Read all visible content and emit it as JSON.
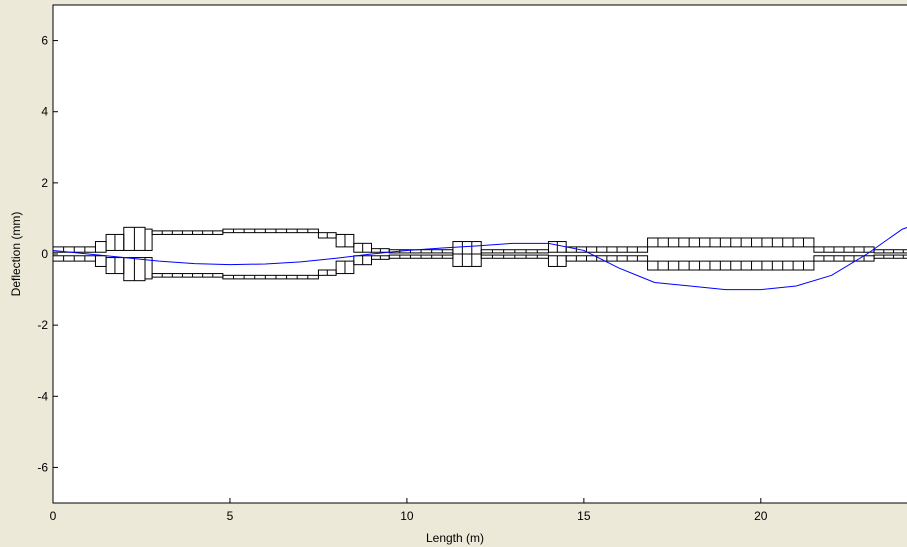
{
  "chart_data": {
    "type": "line",
    "x_label": "Length (m)",
    "y_label": "Deflection (mm)",
    "xlim": [
      0,
      24.3
    ],
    "ylim": [
      -7,
      7
    ],
    "xticks": [
      0,
      5,
      10,
      15,
      20
    ],
    "yticks": [
      -6,
      -4,
      -2,
      0,
      2,
      4,
      6
    ],
    "grid": false,
    "series": [
      {
        "color": "#0000ff",
        "x": [
          0,
          1,
          2,
          3,
          4,
          5,
          6,
          7,
          8,
          9,
          10,
          11,
          12,
          13,
          14,
          15,
          16,
          17,
          18,
          19,
          20,
          21,
          22,
          23,
          24,
          24.3
        ],
        "values": [
          0.1,
          0.0,
          -0.1,
          -0.2,
          -0.27,
          -0.3,
          -0.28,
          -0.22,
          -0.12,
          0.0,
          0.1,
          0.17,
          0.23,
          0.3,
          0.3,
          0.1,
          -0.4,
          -0.8,
          -0.9,
          -1.0,
          -1.0,
          -0.9,
          -0.6,
          0.0,
          0.7,
          0.8
        ]
      }
    ],
    "rotor": {
      "color": "#000000",
      "segments": [
        {
          "start": 0,
          "end": 1.2,
          "inner": 0.05,
          "outer": 0.2
        },
        {
          "start": 1.2,
          "end": 1.5,
          "inner": 0.05,
          "outer": 0.35
        },
        {
          "start": 1.5,
          "end": 2.0,
          "inner": 0.1,
          "outer": 0.55
        },
        {
          "start": 2.0,
          "end": 2.6,
          "inner": 0.1,
          "outer": 0.75
        },
        {
          "start": 2.6,
          "end": 2.8,
          "inner": 0.1,
          "outer": 0.7
        },
        {
          "start": 2.8,
          "end": 4.8,
          "inner": 0.55,
          "outer": 0.65
        },
        {
          "start": 4.8,
          "end": 7.5,
          "inner": 0.6,
          "outer": 0.7
        },
        {
          "start": 7.5,
          "end": 8.0,
          "inner": 0.45,
          "outer": 0.6
        },
        {
          "start": 8.0,
          "end": 8.5,
          "inner": 0.2,
          "outer": 0.55
        },
        {
          "start": 8.5,
          "end": 9.0,
          "inner": 0.05,
          "outer": 0.3
        },
        {
          "start": 9.0,
          "end": 9.5,
          "inner": 0.05,
          "outer": 0.15
        },
        {
          "start": 9.5,
          "end": 11.3,
          "inner": 0.03,
          "outer": 0.12
        },
        {
          "start": 11.3,
          "end": 12.1,
          "inner": 0.0,
          "outer": 0.35
        },
        {
          "start": 12.1,
          "end": 14.0,
          "inner": 0.03,
          "outer": 0.12
        },
        {
          "start": 14.0,
          "end": 14.5,
          "inner": 0.05,
          "outer": 0.35
        },
        {
          "start": 14.5,
          "end": 16.8,
          "inner": 0.05,
          "outer": 0.2
        },
        {
          "start": 16.8,
          "end": 21.5,
          "inner": 0.2,
          "outer": 0.45
        },
        {
          "start": 21.5,
          "end": 23.2,
          "inner": 0.05,
          "outer": 0.2
        },
        {
          "start": 23.2,
          "end": 24.3,
          "inner": 0.03,
          "outer": 0.12
        }
      ]
    }
  }
}
